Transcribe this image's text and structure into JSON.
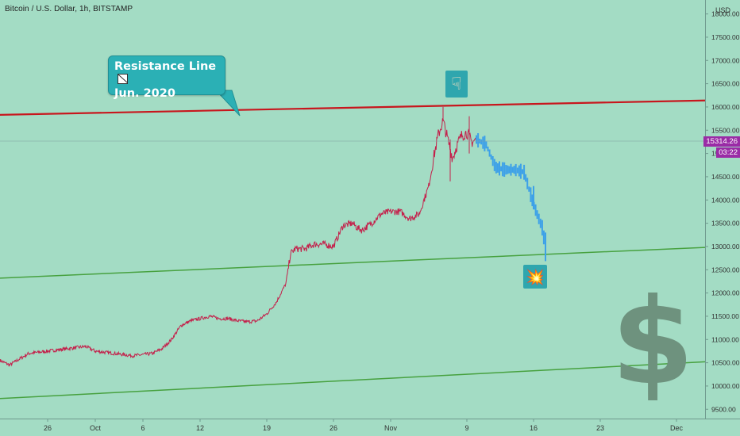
{
  "header": {
    "symbol_text": "Bitcoin / U.S. Dollar, 1h, BITSTAMP"
  },
  "annotation": {
    "line1": "Resistance Line",
    "line2": "Jun. 2020"
  },
  "price_label": "15314.26",
  "countdown_label": "03:22",
  "emoji": {
    "pointer": "☟",
    "boom": "💥"
  },
  "dollar_glyph": "$",
  "colors": {
    "background": "#a3dcc4",
    "price_up": "#c41f4a",
    "forecast": "#3da1e8",
    "resistance": "#c8161d",
    "support": "#47a13f",
    "callout": "#2bb0b5",
    "tag": "#9a2ba6"
  },
  "chart_data": {
    "type": "line",
    "title": "Bitcoin / U.S. Dollar, 1h, BITSTAMP",
    "ylabel": "USD",
    "ylim": [
      9300,
      18300
    ],
    "x_ticks": [
      {
        "label": "26",
        "date": "2020-09-26"
      },
      {
        "label": "Oct",
        "date": "2020-10-01"
      },
      {
        "label": "6",
        "date": "2020-10-06"
      },
      {
        "label": "12",
        "date": "2020-10-12"
      },
      {
        "label": "19",
        "date": "2020-10-19"
      },
      {
        "label": "26",
        "date": "2020-10-26"
      },
      {
        "label": "Nov",
        "date": "2020-11-01"
      },
      {
        "label": "9",
        "date": "2020-11-09"
      },
      {
        "label": "16",
        "date": "2020-11-16"
      },
      {
        "label": "23",
        "date": "2020-11-23"
      },
      {
        "label": "Dec",
        "date": "2020-12-01"
      }
    ],
    "y_ticks": [
      9500,
      10000,
      10500,
      11000,
      11500,
      12000,
      12500,
      13000,
      13500,
      14000,
      14500,
      15000,
      15500,
      16000,
      16500,
      17000,
      17500,
      18000
    ],
    "y_tick_labels": [
      "9500.00",
      "10000.00",
      "10500.00",
      "11000.00",
      "11500.00",
      "12000.00",
      "12500.00",
      "13000.00",
      "13500.00",
      "14000.00",
      "14500.00",
      "15000.00",
      "15500.00",
      "16000.00",
      "16500.00",
      "17000.00",
      "17500.00",
      "18000.00"
    ],
    "series": [
      {
        "kind": "price",
        "points": [
          [
            "2020-09-21",
            10550
          ],
          [
            "2020-09-22",
            10450
          ],
          [
            "2020-09-24",
            10700
          ],
          [
            "2020-09-26",
            10750
          ],
          [
            "2020-09-28",
            10800
          ],
          [
            "2020-09-30",
            10850
          ],
          [
            "2020-10-01",
            10750
          ],
          [
            "2020-10-03",
            10700
          ],
          [
            "2020-10-05",
            10650
          ],
          [
            "2020-10-07",
            10700
          ],
          [
            "2020-10-08",
            10800
          ],
          [
            "2020-10-09",
            11000
          ],
          [
            "2020-10-10",
            11300
          ],
          [
            "2020-10-11",
            11400
          ],
          [
            "2020-10-12",
            11450
          ],
          [
            "2020-10-13",
            11500
          ],
          [
            "2020-10-14",
            11450
          ],
          [
            "2020-10-15",
            11450
          ],
          [
            "2020-10-16",
            11400
          ],
          [
            "2020-10-17",
            11380
          ],
          [
            "2020-10-18",
            11400
          ],
          [
            "2020-10-19",
            11550
          ],
          [
            "2020-10-20",
            11800
          ],
          [
            "2020-10-21",
            12200
          ],
          [
            "2020-10-21T12:00",
            12850
          ],
          [
            "2020-10-22",
            12950
          ],
          [
            "2020-10-23",
            12950
          ],
          [
            "2020-10-24",
            13050
          ],
          [
            "2020-10-25",
            13050
          ],
          [
            "2020-10-26",
            13000
          ],
          [
            "2020-10-27",
            13450
          ],
          [
            "2020-10-28",
            13500
          ],
          [
            "2020-10-28T12:00",
            13400
          ],
          [
            "2020-10-29",
            13350
          ],
          [
            "2020-10-30",
            13500
          ],
          [
            "2020-10-31",
            13700
          ],
          [
            "2020-11-01",
            13750
          ],
          [
            "2020-11-02",
            13750
          ],
          [
            "2020-11-03",
            13600
          ],
          [
            "2020-11-04",
            13700
          ],
          [
            "2020-11-04T12:00",
            14000
          ],
          [
            "2020-11-05",
            14300
          ],
          [
            "2020-11-05T12:00",
            14900
          ],
          [
            "2020-11-06",
            15400
          ],
          [
            "2020-11-06T12:00",
            15700
          ],
          [
            "2020-11-07",
            15300
          ],
          [
            "2020-11-07T12:00",
            14900
          ],
          [
            "2020-11-08",
            15200
          ],
          [
            "2020-11-08T12:00",
            15400
          ],
          [
            "2020-11-09",
            15450
          ],
          [
            "2020-11-09T12:00",
            15250
          ],
          [
            "2020-11-10",
            15300
          ]
        ]
      },
      {
        "kind": "forecast",
        "points": [
          [
            "2020-11-10",
            15300
          ],
          [
            "2020-11-11",
            15200
          ],
          [
            "2020-11-12",
            14700
          ],
          [
            "2020-11-13",
            14650
          ],
          [
            "2020-11-14",
            14650
          ],
          [
            "2020-11-15",
            14600
          ],
          [
            "2020-11-16",
            13900
          ],
          [
            "2020-11-17",
            13350
          ],
          [
            "2020-11-17T06:00",
            12850
          ]
        ]
      }
    ],
    "trendlines": [
      {
        "name": "Resistance Line",
        "p1": [
          "2020-09-21",
          15830
        ],
        "p2": [
          "2020-12-04",
          16140
        ]
      },
      {
        "name": "",
        "p1": [
          "2020-09-21",
          12320
        ],
        "p2": [
          "2020-12-04",
          12980
        ]
      },
      {
        "name": "",
        "p1": [
          "2020-09-21",
          9730
        ],
        "p2": [
          "2020-12-04",
          10520
        ]
      }
    ],
    "current_price": 15314.26,
    "grid": false
  }
}
